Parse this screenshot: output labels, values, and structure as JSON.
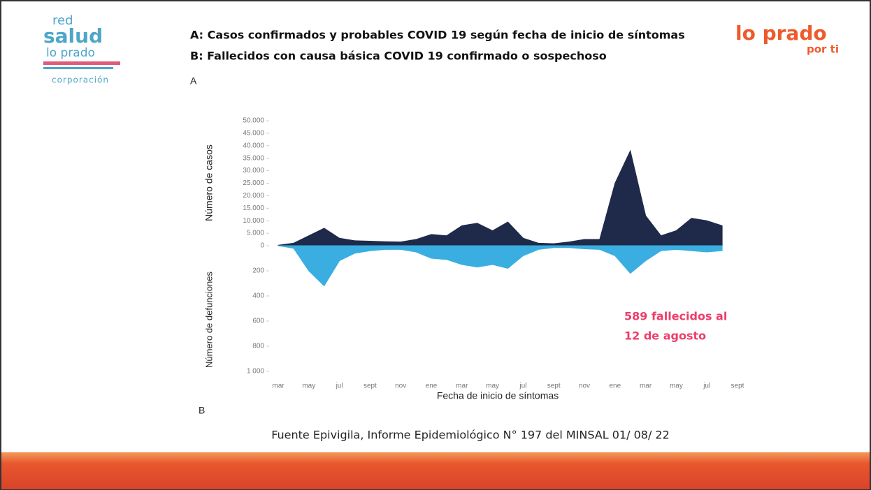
{
  "header": {
    "logo_left": [
      "red",
      "salud",
      "lo prado",
      "corporación"
    ],
    "logo_right": [
      "lo prado",
      "por ti"
    ],
    "title_lines": [
      "A: Casos confirmados y probables COVID 19 según fecha de inicio de síntomas",
      "B: Fallecidos con causa básica COVID 19 confirmado o sospechoso"
    ]
  },
  "chart_data": {
    "type": "area",
    "panel_labels": [
      "A",
      "B"
    ],
    "ylabel": "Número de casos",
    "y2label": "Número de defunciones",
    "xlabel": "Fecha de inicio de síntomas",
    "categories": [
      "mar",
      null,
      "may",
      null,
      "jul",
      null,
      "sept",
      null,
      "nov",
      null,
      "ene",
      null,
      "mar",
      null,
      "may",
      null,
      "jul",
      null,
      "sept",
      null,
      "nov",
      null,
      "ene",
      null,
      "mar",
      null,
      "may",
      null,
      "jul",
      null,
      "sept"
    ],
    "series": [
      {
        "name": "Casos",
        "color": "#1f2a4a",
        "axis": "y",
        "values": [
          200,
          1000,
          4000,
          7000,
          3000,
          2000,
          1800,
          1600,
          1500,
          2500,
          4500,
          4000,
          8000,
          9000,
          6000,
          9500,
          3000,
          1000,
          800,
          1500,
          2500,
          2500,
          25000,
          38000,
          12000,
          4000,
          6000,
          11000,
          10000,
          8000,
          null
        ]
      },
      {
        "name": "Defunciones",
        "color": "#3aaee0",
        "axis": "y2",
        "values": [
          0,
          20,
          200,
          320,
          120,
          60,
          40,
          30,
          30,
          50,
          100,
          110,
          150,
          170,
          150,
          180,
          80,
          30,
          15,
          15,
          25,
          30,
          80,
          220,
          120,
          40,
          30,
          40,
          50,
          40,
          null
        ]
      }
    ],
    "ylim": [
      0,
      50000
    ],
    "yticks": [
      0,
      {
        "value": 5000,
        "label": "5.000"
      },
      {
        "value": 10000,
        "label": "10.000"
      },
      {
        "value": 15000,
        "label": "15.000"
      },
      {
        "value": 20000,
        "label": "20.000"
      },
      {
        "value": 25000,
        "label": "25.000"
      },
      {
        "value": 30000,
        "label": "30.000"
      },
      {
        "value": 35000,
        "label": "35.000"
      },
      {
        "value": 40000,
        "label": "40.000"
      },
      {
        "value": 45000,
        "label": "45.000"
      },
      {
        "value": 50000,
        "label": "50.000"
      }
    ],
    "y2lim": [
      0,
      1000
    ],
    "y2_inverted": true,
    "y2ticks": [
      200,
      400,
      600,
      800,
      {
        "value": 1000,
        "label": "1 000"
      }
    ],
    "annotation": [
      "589 fallecidos al",
      "12 de agosto"
    ]
  },
  "footer": {
    "source": "Fuente Epivigila, Informe Epidemiológico N° 197 del MINSAL 01/ 08/ 22"
  }
}
